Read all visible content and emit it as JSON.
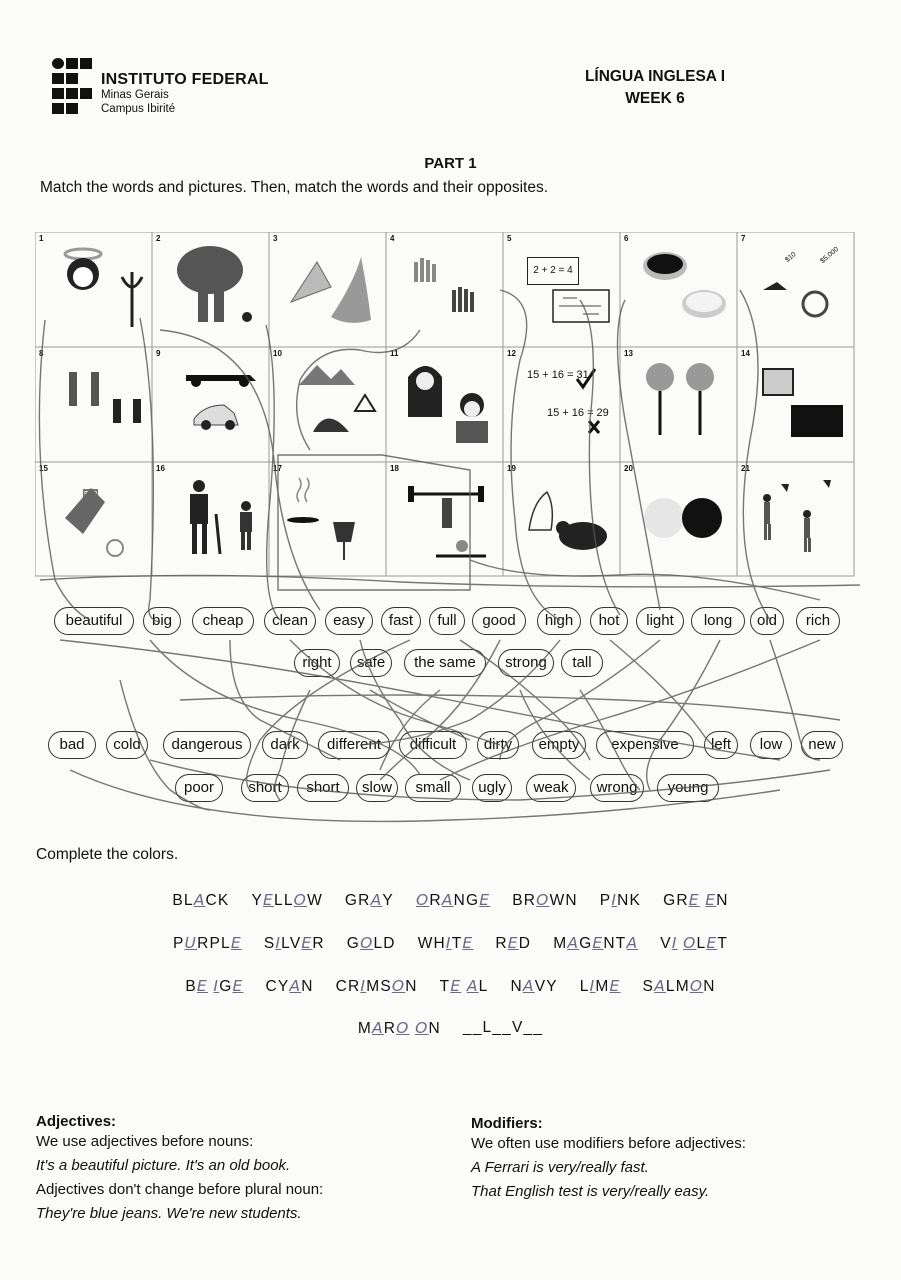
{
  "header": {
    "institution": "INSTITUTO FEDERAL",
    "state": "Minas Gerais",
    "campus": "Campus Ibirité",
    "course": "LÍNGUA INGLESA I",
    "week": "WEEK 6"
  },
  "part": {
    "title": "PART 1",
    "instruction": "Match the words and pictures. Then, match the words and their opposites."
  },
  "pictures": [
    {
      "num": "1",
      "icon": "angel-devil-icon"
    },
    {
      "num": "2",
      "icon": "elephant-mouse-icon"
    },
    {
      "num": "3",
      "icon": "fish-shark-icon"
    },
    {
      "num": "4",
      "icon": "dirty-clean-hands-icon"
    },
    {
      "num": "5",
      "icon": "easy-hard-math-icon",
      "text_easy": "2 + 2 = 4"
    },
    {
      "num": "6",
      "icon": "full-empty-cup-icon"
    },
    {
      "num": "7",
      "icon": "cheap-expensive-ring-icon",
      "tag1": "$10",
      "tag2": "$5,000"
    },
    {
      "num": "8",
      "icon": "tall-short-people-icon"
    },
    {
      "num": "9",
      "icon": "fast-slow-car-icon"
    },
    {
      "num": "10",
      "icon": "safe-dangerous-road-icon"
    },
    {
      "num": "11",
      "icon": "long-short-hair-icon"
    },
    {
      "num": "12",
      "icon": "right-wrong-sum-icon",
      "sum_right": "15 + 16 = 31",
      "sum_wrong": "15 + 16 = 29"
    },
    {
      "num": "13",
      "icon": "left-right-sign-icon"
    },
    {
      "num": "14",
      "icon": "old-new-tv-icon"
    },
    {
      "num": "15",
      "icon": "rich-poor-money-icon",
      "tag": "$50"
    },
    {
      "num": "16",
      "icon": "old-young-person-icon"
    },
    {
      "num": "17",
      "icon": "hot-cold-pan-icon"
    },
    {
      "num": "18",
      "icon": "strong-weak-weights-icon"
    },
    {
      "num": "19",
      "icon": "beautiful-ugly-cat-icon"
    },
    {
      "num": "20",
      "icon": "light-dark-circle-icon"
    },
    {
      "num": "21",
      "icon": "high-low-jump-icon"
    }
  ],
  "words_top": [
    "beautiful",
    "big",
    "cheap",
    "clean",
    "easy",
    "fast",
    "full",
    "good",
    "high",
    "hot",
    "light",
    "long",
    "old",
    "rich"
  ],
  "words_top2": [
    "right",
    "safe",
    "the same",
    "strong",
    "tall"
  ],
  "words_bottom": [
    "bad",
    "cold",
    "dangerous",
    "dark",
    "different",
    "difficult",
    "dirty",
    "empty",
    "expensive",
    "left",
    "low",
    "new"
  ],
  "words_bottom2": [
    "poor",
    "short",
    "short",
    "slow",
    "small",
    "ugly",
    "weak",
    "wrong",
    "young"
  ],
  "colors": {
    "title": "Complete the colors.",
    "rows": [
      [
        [
          {
            "t": "BL"
          },
          {
            "h": "A"
          },
          {
            "t": "CK"
          }
        ],
        [
          {
            "t": "Y"
          },
          {
            "h": "E"
          },
          {
            "t": "LL"
          },
          {
            "h": "O"
          },
          {
            "t": "W"
          }
        ],
        [
          {
            "t": "GR"
          },
          {
            "h": "A"
          },
          {
            "t": "Y"
          }
        ],
        [
          {
            "h": "O"
          },
          {
            "t": "R"
          },
          {
            "h": "A"
          },
          {
            "t": "NG"
          },
          {
            "h": "E"
          }
        ],
        [
          {
            "t": "BR"
          },
          {
            "h": "O"
          },
          {
            "t": "WN"
          }
        ],
        [
          {
            "t": "P"
          },
          {
            "h": "I"
          },
          {
            "t": "NK"
          }
        ],
        [
          {
            "t": "GR"
          },
          {
            "h": "E"
          },
          {
            "t": " "
          },
          {
            "h": "E"
          },
          {
            "t": "N"
          }
        ]
      ],
      [
        [
          {
            "t": "P"
          },
          {
            "h": "U"
          },
          {
            "t": "RPL"
          },
          {
            "h": "E"
          }
        ],
        [
          {
            "t": "S"
          },
          {
            "h": "I"
          },
          {
            "t": "LV"
          },
          {
            "h": "E"
          },
          {
            "t": "R"
          }
        ],
        [
          {
            "t": "G"
          },
          {
            "h": "O"
          },
          {
            "t": "LD"
          }
        ],
        [
          {
            "t": "WH"
          },
          {
            "h": "I"
          },
          {
            "t": "T"
          },
          {
            "h": "E"
          }
        ],
        [
          {
            "t": "R"
          },
          {
            "h": "E"
          },
          {
            "t": "D"
          }
        ],
        [
          {
            "t": "M"
          },
          {
            "h": "A"
          },
          {
            "t": "G"
          },
          {
            "h": "E"
          },
          {
            "t": "NT"
          },
          {
            "h": "A"
          }
        ],
        [
          {
            "t": "V"
          },
          {
            "h": "I"
          },
          {
            "t": " "
          },
          {
            "h": "O"
          },
          {
            "t": "L"
          },
          {
            "h": "E"
          },
          {
            "t": "T"
          }
        ]
      ],
      [
        [
          {
            "t": "B"
          },
          {
            "h": "E"
          },
          {
            "t": " "
          },
          {
            "h": "I"
          },
          {
            "t": "G"
          },
          {
            "h": "E"
          }
        ],
        [
          {
            "t": "CY"
          },
          {
            "h": "A"
          },
          {
            "t": "N"
          }
        ],
        [
          {
            "t": "CR"
          },
          {
            "h": "I"
          },
          {
            "t": "MS"
          },
          {
            "h": "O"
          },
          {
            "t": "N"
          }
        ],
        [
          {
            "t": "T"
          },
          {
            "h": "E"
          },
          {
            "t": " "
          },
          {
            "h": "A"
          },
          {
            "t": "L"
          }
        ],
        [
          {
            "t": "N"
          },
          {
            "h": "A"
          },
          {
            "t": "VY"
          }
        ],
        [
          {
            "t": "L"
          },
          {
            "h": "I"
          },
          {
            "t": "M"
          },
          {
            "h": "E"
          }
        ],
        [
          {
            "t": "S"
          },
          {
            "h": "A"
          },
          {
            "t": "LM"
          },
          {
            "h": "O"
          },
          {
            "t": "N"
          }
        ]
      ],
      [
        [
          {
            "t": "M"
          },
          {
            "h": "A"
          },
          {
            "t": "R"
          },
          {
            "h": "O"
          },
          {
            "t": " "
          },
          {
            "h": "O"
          },
          {
            "t": "N"
          }
        ],
        [
          {
            "t": "__L__V__"
          }
        ]
      ]
    ]
  },
  "adjectives": {
    "title": "Adjectives:",
    "line1": "We use adjectives before nouns:",
    "ex1": "It's a beautiful picture. It's an old book.",
    "line2": "Adjectives don't change before plural noun:",
    "ex2": "They're blue jeans. We're new students."
  },
  "modifiers": {
    "title": "Modifiers:",
    "line1": "We often use modifiers before adjectives:",
    "ex1": "A Ferrari is very/really fast.",
    "ex2": "That English test is very/really easy."
  }
}
